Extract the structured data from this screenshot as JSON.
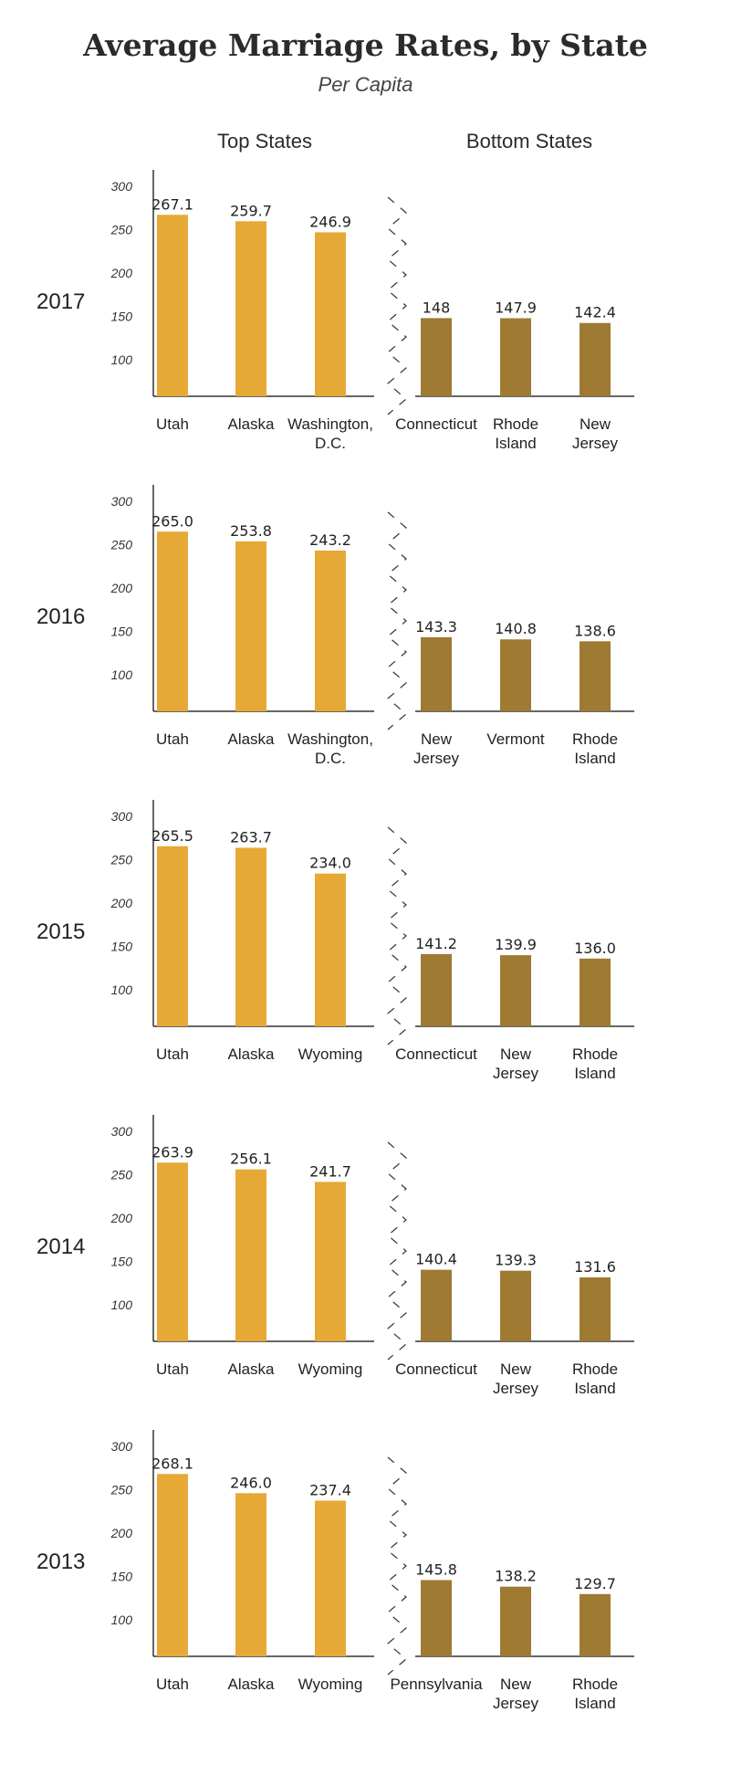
{
  "title": "Average Marriage Rates, by State",
  "subtitle": "Per Capita",
  "headers": {
    "top": "Top States",
    "bottom": "Bottom States"
  },
  "colors": {
    "top_bar": "#E6A935",
    "bottom_bar": "#9E7A33",
    "axis": "#333333"
  },
  "chart_data": [
    {
      "type": "bar",
      "year": "2017",
      "yticks": [
        100,
        150,
        200,
        250,
        300
      ],
      "top": {
        "categories": [
          "Utah",
          "Alaska",
          "Washington,\nD.C."
        ],
        "values": [
          267.1,
          259.7,
          246.9
        ],
        "labels": [
          "267.1",
          "259.7",
          "246.9"
        ]
      },
      "bottom": {
        "categories": [
          "Connecticut",
          "Rhode\nIsland",
          "New\nJersey"
        ],
        "values": [
          148,
          147.9,
          142.4
        ],
        "labels": [
          "148",
          "147.9",
          "142.4"
        ]
      }
    },
    {
      "type": "bar",
      "year": "2016",
      "yticks": [
        100,
        150,
        200,
        250,
        300
      ],
      "top": {
        "categories": [
          "Utah",
          "Alaska",
          "Washington,\nD.C."
        ],
        "values": [
          265.0,
          253.8,
          243.2
        ],
        "labels": [
          "265.0",
          "253.8",
          "243.2"
        ]
      },
      "bottom": {
        "categories": [
          "New\nJersey",
          "Vermont",
          "Rhode\nIsland"
        ],
        "values": [
          143.3,
          140.8,
          138.6
        ],
        "labels": [
          "143.3",
          "140.8",
          "138.6"
        ]
      }
    },
    {
      "type": "bar",
      "year": "2015",
      "yticks": [
        100,
        150,
        200,
        250,
        300
      ],
      "top": {
        "categories": [
          "Utah",
          "Alaska",
          "Wyoming"
        ],
        "values": [
          265.5,
          263.7,
          234.0
        ],
        "labels": [
          "265.5",
          "263.7",
          "234.0"
        ]
      },
      "bottom": {
        "categories": [
          "Connecticut",
          "New\nJersey",
          "Rhode\nIsland"
        ],
        "values": [
          141.2,
          139.9,
          136.0
        ],
        "labels": [
          "141.2",
          "139.9",
          "136.0"
        ]
      }
    },
    {
      "type": "bar",
      "year": "2014",
      "yticks": [
        100,
        150,
        200,
        250,
        300
      ],
      "top": {
        "categories": [
          "Utah",
          "Alaska",
          "Wyoming"
        ],
        "values": [
          263.9,
          256.1,
          241.7
        ],
        "labels": [
          "263.9",
          "256.1",
          "241.7"
        ]
      },
      "bottom": {
        "categories": [
          "Connecticut",
          "New\nJersey",
          "Rhode\nIsland"
        ],
        "values": [
          140.4,
          139.3,
          131.6
        ],
        "labels": [
          "140.4",
          "139.3",
          "131.6"
        ]
      }
    },
    {
      "type": "bar",
      "year": "2013",
      "yticks": [
        100,
        150,
        200,
        250,
        300
      ],
      "top": {
        "categories": [
          "Utah",
          "Alaska",
          "Wyoming"
        ],
        "values": [
          268.1,
          246.0,
          237.4
        ],
        "labels": [
          "268.1",
          "246.0",
          "237.4"
        ]
      },
      "bottom": {
        "categories": [
          "Pennsylvania",
          "New\nJersey",
          "Rhode\nIsland"
        ],
        "values": [
          145.8,
          138.2,
          129.7
        ],
        "labels": [
          "145.8",
          "138.2",
          "129.7"
        ]
      }
    }
  ]
}
